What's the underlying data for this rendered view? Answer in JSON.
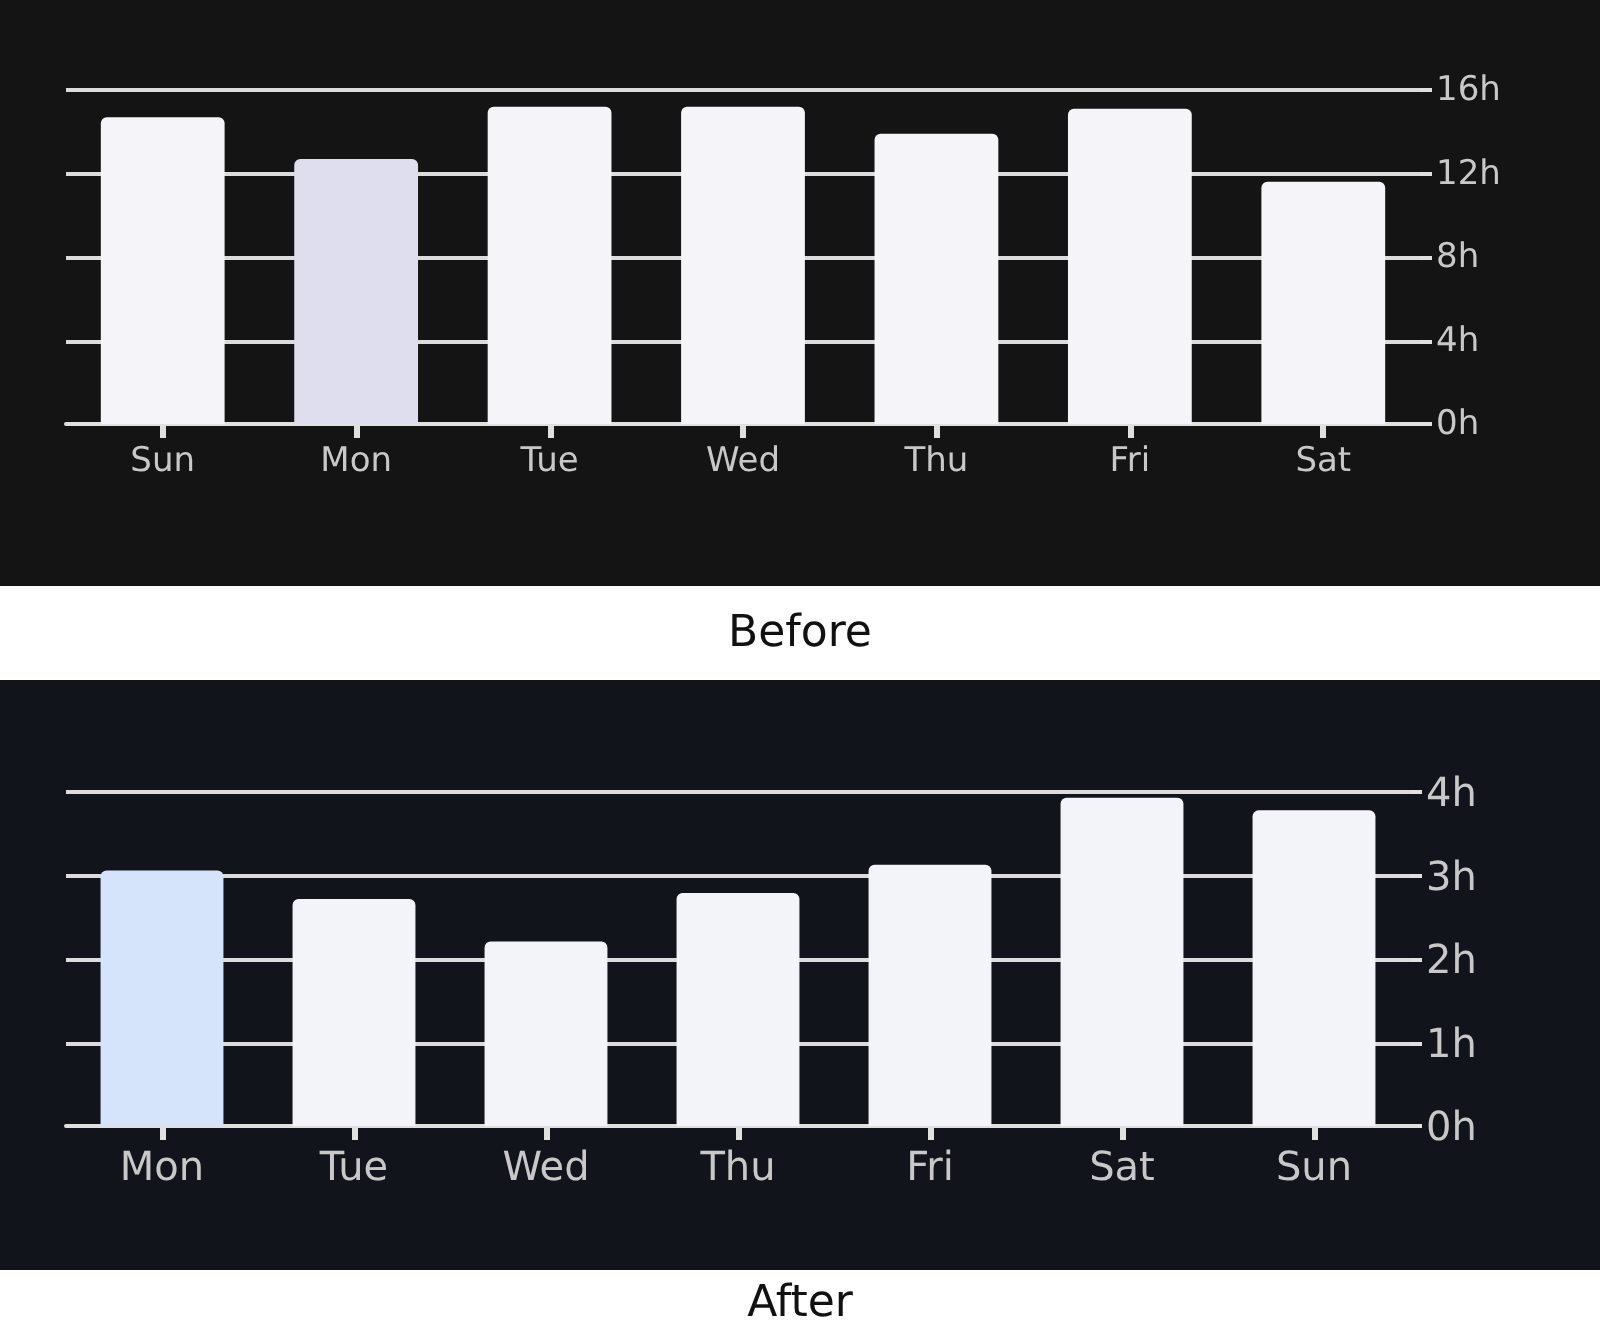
{
  "chart_data": [
    {
      "type": "bar",
      "title": "Before",
      "categories": [
        "Sun",
        "Mon",
        "Tue",
        "Wed",
        "Thu",
        "Fri",
        "Sat"
      ],
      "values": [
        14.7,
        12.7,
        15.2,
        15.2,
        13.9,
        15.1,
        11.6
      ],
      "colors": [
        "#f4f4f9",
        "#dfdeef",
        "#f4f4f9",
        "#f4f4f9",
        "#f4f4f9",
        "#f4f4f9",
        "#f4f4f9"
      ],
      "ylim": [
        0,
        16
      ],
      "yticks": [
        {
          "value": 0,
          "label": "0h"
        },
        {
          "value": 4,
          "label": "4h"
        },
        {
          "value": 8,
          "label": "8h"
        },
        {
          "value": 12,
          "label": "12h"
        },
        {
          "value": 16,
          "label": "16h"
        }
      ],
      "grid": "y"
    },
    {
      "type": "bar",
      "title": "After",
      "categories": [
        "Mon",
        "Tue",
        "Wed",
        "Thu",
        "Fri",
        "Sat",
        "Sun"
      ],
      "values": [
        3.06,
        2.72,
        2.21,
        2.79,
        3.13,
        3.93,
        3.78
      ],
      "colors": [
        "#d5e3fb",
        "#f3f4f9",
        "#f3f4f9",
        "#f3f4f9",
        "#f3f4f9",
        "#f3f4f9",
        "#f3f4f9"
      ],
      "ylim": [
        0,
        4
      ],
      "yticks": [
        {
          "value": 0,
          "label": "0h"
        },
        {
          "value": 1,
          "label": "1h"
        },
        {
          "value": 2,
          "label": "2h"
        },
        {
          "value": 3,
          "label": "3h"
        },
        {
          "value": 4,
          "label": "4h"
        }
      ],
      "grid": "y"
    }
  ]
}
